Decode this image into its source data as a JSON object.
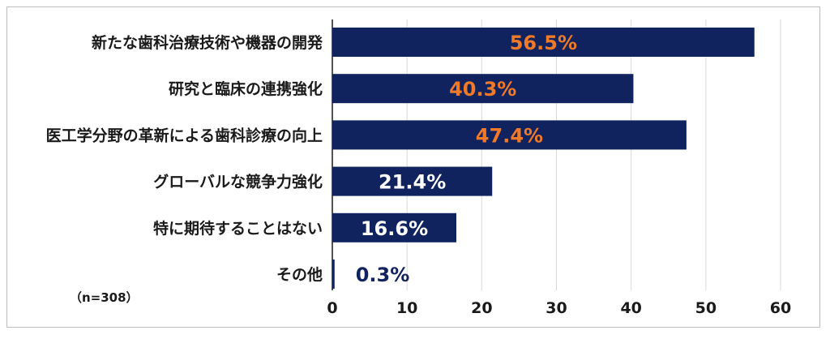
{
  "note": "（n=308）",
  "colors": {
    "bar": "#10235e",
    "highlight_label": "#f07a28",
    "normal_label": "#ffffff",
    "outside_label": "#10235e",
    "grid": "#d9d9d9",
    "axis": "#1a1a1a"
  },
  "chart_data": {
    "type": "bar",
    "orientation": "horizontal",
    "categories": [
      "新たな歯科治療技術や機器の開発",
      "研究と臨床の連携強化",
      "医工学分野の革新による歯科診療の向上",
      "グローバルな競争力強化",
      "特に期待することはない",
      "その他"
    ],
    "values": [
      56.5,
      40.3,
      47.4,
      21.4,
      16.6,
      0.3
    ],
    "value_labels": [
      "56.5%",
      "40.3%",
      "47.4%",
      "21.4%",
      "16.6%",
      "0.3%"
    ],
    "highlighted": [
      true,
      true,
      true,
      false,
      false,
      false
    ],
    "xlim": [
      0,
      60
    ],
    "xticks": [
      0,
      10,
      20,
      30,
      40,
      50,
      60
    ],
    "grid": true,
    "legend": "none"
  }
}
